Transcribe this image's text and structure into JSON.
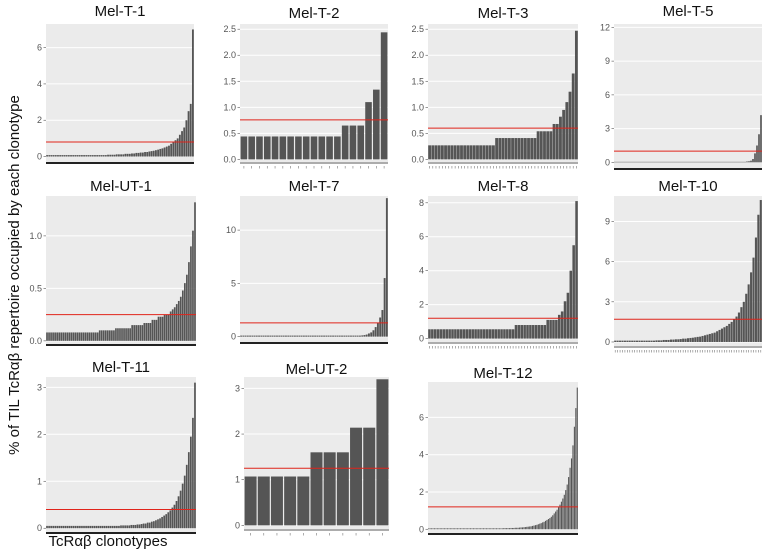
{
  "figure": {
    "ylabel": "% of TIL TcRαβ repertoire occupied by each clonotype",
    "xlabel": "TcRαβ clonotypes"
  },
  "colors": {
    "panel_bg": "#ebebeb",
    "bar": "#555555",
    "mean_line": "#e0241b",
    "axis": "#222222"
  },
  "chart_data": [
    {
      "type": "bar",
      "title": "Mel-T-1",
      "ylim": [
        -0.3,
        7.3
      ],
      "yticks": [
        0,
        2,
        4,
        6
      ],
      "mean": 0.8,
      "ytick_labels": [
        "0",
        "2",
        "4",
        "6"
      ],
      "values": [
        0.08,
        0.08,
        0.08,
        0.08,
        0.08,
        0.08,
        0.08,
        0.08,
        0.08,
        0.08,
        0.08,
        0.08,
        0.08,
        0.08,
        0.08,
        0.08,
        0.08,
        0.08,
        0.08,
        0.08,
        0.08,
        0.08,
        0.08,
        0.08,
        0.08,
        0.08,
        0.08,
        0.08,
        0.1,
        0.1,
        0.1,
        0.1,
        0.12,
        0.12,
        0.12,
        0.12,
        0.15,
        0.15,
        0.15,
        0.17,
        0.17,
        0.2,
        0.2,
        0.22,
        0.22,
        0.25,
        0.25,
        0.28,
        0.3,
        0.32,
        0.35,
        0.38,
        0.42,
        0.45,
        0.5,
        0.55,
        0.6,
        0.7,
        0.8,
        0.9,
        1.0,
        1.2,
        1.4,
        1.6,
        2.0,
        2.5,
        2.9,
        7.0
      ]
    },
    {
      "type": "bar",
      "title": "Mel-T-2",
      "ylim": [
        -0.05,
        2.6
      ],
      "yticks": [
        0.0,
        0.5,
        1.0,
        1.5,
        2.0,
        2.5
      ],
      "mean": 0.76,
      "ytick_labels": [
        "0.0",
        "0.5",
        "1.0",
        "1.5",
        "2.0",
        "2.5"
      ],
      "values": [
        0.44,
        0.44,
        0.44,
        0.44,
        0.44,
        0.44,
        0.44,
        0.44,
        0.44,
        0.44,
        0.44,
        0.44,
        0.44,
        0.65,
        0.65,
        0.65,
        1.1,
        1.34,
        2.44
      ]
    },
    {
      "type": "bar",
      "title": "Mel-T-3",
      "ylim": [
        -0.05,
        2.6
      ],
      "yticks": [
        0.0,
        0.5,
        1.0,
        1.5,
        2.0,
        2.5
      ],
      "mean": 0.6,
      "ytick_labels": [
        "0.0",
        "0.5",
        "1.0",
        "1.5",
        "2.0",
        "2.5"
      ],
      "values": [
        0.27,
        0.27,
        0.27,
        0.27,
        0.27,
        0.27,
        0.27,
        0.27,
        0.27,
        0.27,
        0.27,
        0.27,
        0.27,
        0.27,
        0.27,
        0.27,
        0.27,
        0.27,
        0.27,
        0.27,
        0.27,
        0.41,
        0.41,
        0.41,
        0.41,
        0.41,
        0.41,
        0.41,
        0.41,
        0.41,
        0.41,
        0.41,
        0.41,
        0.41,
        0.54,
        0.54,
        0.54,
        0.54,
        0.54,
        0.68,
        0.68,
        0.82,
        0.95,
        1.1,
        1.3,
        1.65,
        2.47
      ]
    },
    {
      "type": "bar",
      "title": "Mel-T-5",
      "ylim": [
        -0.5,
        12.3
      ],
      "yticks": [
        0,
        3,
        6,
        9,
        12
      ],
      "mean": 1.0,
      "ytick_labels": [
        "0",
        "3",
        "6",
        "9",
        "12"
      ],
      "values": [
        0.05,
        0.05,
        0.05,
        0.05,
        0.05,
        0.05,
        0.05,
        0.05,
        0.05,
        0.05,
        0.05,
        0.05,
        0.05,
        0.05,
        0.05,
        0.05,
        0.05,
        0.05,
        0.05,
        0.05,
        0.05,
        0.05,
        0.05,
        0.05,
        0.05,
        0.05,
        0.05,
        0.05,
        0.05,
        0.05,
        0.05,
        0.05,
        0.05,
        0.05,
        0.05,
        0.05,
        0.05,
        0.05,
        0.05,
        0.05,
        0.05,
        0.05,
        0.05,
        0.05,
        0.05,
        0.05,
        0.05,
        0.05,
        0.05,
        0.05,
        0.05,
        0.05,
        0.05,
        0.05,
        0.05,
        0.05,
        0.05,
        0.05,
        0.05,
        0.05,
        0.05,
        0.05,
        0.05,
        0.05,
        0.05,
        0.05,
        0.08,
        0.1,
        0.15,
        0.3,
        0.8,
        1.5,
        2.5,
        4.2
      ]
    },
    {
      "type": "bar",
      "title": "Mel-UT-1",
      "ylim": [
        -0.03,
        1.38
      ],
      "yticks": [
        0.0,
        0.5,
        1.0
      ],
      "mean": 0.25,
      "ytick_labels": [
        "0.0",
        "0.5",
        "1.0"
      ],
      "values": [
        0.08,
        0.08,
        0.08,
        0.08,
        0.08,
        0.08,
        0.08,
        0.08,
        0.08,
        0.08,
        0.08,
        0.08,
        0.08,
        0.08,
        0.08,
        0.08,
        0.08,
        0.08,
        0.08,
        0.08,
        0.08,
        0.08,
        0.08,
        0.08,
        0.08,
        0.08,
        0.1,
        0.1,
        0.1,
        0.1,
        0.1,
        0.1,
        0.1,
        0.1,
        0.12,
        0.12,
        0.12,
        0.12,
        0.12,
        0.12,
        0.12,
        0.12,
        0.15,
        0.15,
        0.15,
        0.15,
        0.15,
        0.15,
        0.17,
        0.17,
        0.17,
        0.17,
        0.2,
        0.2,
        0.2,
        0.23,
        0.23,
        0.23,
        0.25,
        0.25,
        0.25,
        0.28,
        0.3,
        0.32,
        0.35,
        0.38,
        0.42,
        0.48,
        0.55,
        0.63,
        0.75,
        0.9,
        1.05,
        1.32
      ]
    },
    {
      "type": "bar",
      "title": "Mel-T-7",
      "ylim": [
        -0.5,
        13.2
      ],
      "yticks": [
        0,
        5,
        10
      ],
      "mean": 1.3,
      "ytick_labels": [
        "0",
        "5",
        "10"
      ],
      "values": [
        0.1,
        0.1,
        0.1,
        0.1,
        0.1,
        0.1,
        0.1,
        0.1,
        0.1,
        0.1,
        0.1,
        0.1,
        0.1,
        0.1,
        0.1,
        0.1,
        0.1,
        0.1,
        0.1,
        0.1,
        0.1,
        0.1,
        0.1,
        0.1,
        0.1,
        0.1,
        0.1,
        0.1,
        0.1,
        0.1,
        0.1,
        0.1,
        0.1,
        0.1,
        0.1,
        0.1,
        0.1,
        0.1,
        0.1,
        0.1,
        0.1,
        0.1,
        0.1,
        0.1,
        0.1,
        0.1,
        0.1,
        0.1,
        0.1,
        0.1,
        0.1,
        0.1,
        0.1,
        0.1,
        0.12,
        0.15,
        0.2,
        0.3,
        0.4,
        0.6,
        0.9,
        1.3,
        1.8,
        2.5,
        5.5,
        13.0
      ]
    },
    {
      "type": "bar",
      "title": "Mel-T-8",
      "ylim": [
        -0.2,
        8.4
      ],
      "yticks": [
        0,
        2,
        4,
        6,
        8
      ],
      "mean": 1.2,
      "ytick_labels": [
        "0",
        "2",
        "4",
        "6",
        "8"
      ],
      "values": [
        0.55,
        0.55,
        0.55,
        0.55,
        0.55,
        0.55,
        0.55,
        0.55,
        0.55,
        0.55,
        0.55,
        0.55,
        0.55,
        0.55,
        0.55,
        0.55,
        0.55,
        0.55,
        0.55,
        0.55,
        0.55,
        0.55,
        0.55,
        0.55,
        0.55,
        0.55,
        0.55,
        0.55,
        0.55,
        0.55,
        0.8,
        0.8,
        0.8,
        0.8,
        0.8,
        0.8,
        0.8,
        0.8,
        0.8,
        0.8,
        0.8,
        1.1,
        1.1,
        1.1,
        1.1,
        1.4,
        1.6,
        2.2,
        2.7,
        4.0,
        5.5,
        8.1
      ]
    },
    {
      "type": "bar",
      "title": "Mel-T-10",
      "ylim": [
        -0.3,
        10.9
      ],
      "yticks": [
        0,
        3,
        6,
        9
      ],
      "mean": 1.7,
      "ytick_labels": [
        "0",
        "3",
        "6",
        "9"
      ],
      "values": [
        0.1,
        0.1,
        0.1,
        0.1,
        0.1,
        0.1,
        0.1,
        0.1,
        0.1,
        0.1,
        0.1,
        0.1,
        0.1,
        0.1,
        0.1,
        0.1,
        0.1,
        0.12,
        0.12,
        0.12,
        0.15,
        0.15,
        0.15,
        0.18,
        0.18,
        0.2,
        0.2,
        0.22,
        0.25,
        0.25,
        0.28,
        0.3,
        0.32,
        0.35,
        0.38,
        0.4,
        0.45,
        0.5,
        0.55,
        0.6,
        0.65,
        0.7,
        0.8,
        0.9,
        1.0,
        1.1,
        1.2,
        1.35,
        1.5,
        1.7,
        1.9,
        2.2,
        2.6,
        3.0,
        3.6,
        4.3,
        5.2,
        6.3,
        7.8,
        9.5,
        10.6
      ]
    },
    {
      "type": "bar",
      "title": "Mel-T-11",
      "ylim": [
        -0.08,
        3.22
      ],
      "yticks": [
        0,
        1,
        2,
        3
      ],
      "mean": 0.4,
      "ytick_labels": [
        "0",
        "1",
        "2",
        "3"
      ],
      "values": [
        0.05,
        0.05,
        0.05,
        0.05,
        0.05,
        0.05,
        0.05,
        0.05,
        0.05,
        0.05,
        0.05,
        0.05,
        0.05,
        0.05,
        0.05,
        0.05,
        0.05,
        0.05,
        0.05,
        0.05,
        0.05,
        0.05,
        0.05,
        0.05,
        0.05,
        0.05,
        0.05,
        0.05,
        0.05,
        0.05,
        0.05,
        0.05,
        0.05,
        0.05,
        0.05,
        0.05,
        0.06,
        0.06,
        0.06,
        0.06,
        0.06,
        0.07,
        0.07,
        0.07,
        0.08,
        0.08,
        0.09,
        0.1,
        0.1,
        0.12,
        0.12,
        0.14,
        0.15,
        0.17,
        0.19,
        0.21,
        0.24,
        0.27,
        0.3,
        0.34,
        0.38,
        0.44,
        0.5,
        0.58,
        0.68,
        0.8,
        0.95,
        1.12,
        1.35,
        1.62,
        1.95,
        2.35,
        3.1
      ]
    },
    {
      "type": "bar",
      "title": "Mel-UT-2",
      "ylim": [
        -0.08,
        3.25
      ],
      "yticks": [
        0,
        1,
        2,
        3
      ],
      "mean": 1.25,
      "ytick_labels": [
        "0",
        "1",
        "2",
        "3"
      ],
      "values": [
        1.07,
        1.07,
        1.07,
        1.07,
        1.07,
        1.6,
        1.6,
        1.6,
        2.14,
        2.14,
        3.2
      ]
    },
    {
      "type": "bar",
      "title": "Mel-T-12",
      "ylim": [
        -0.2,
        7.9
      ],
      "yticks": [
        0,
        2,
        4,
        6
      ],
      "mean": 1.2,
      "ytick_labels": [
        "0",
        "2",
        "4",
        "6"
      ],
      "values": [
        0.05,
        0.05,
        0.05,
        0.05,
        0.05,
        0.05,
        0.05,
        0.05,
        0.05,
        0.05,
        0.05,
        0.05,
        0.05,
        0.05,
        0.05,
        0.05,
        0.05,
        0.05,
        0.05,
        0.05,
        0.05,
        0.05,
        0.05,
        0.05,
        0.05,
        0.05,
        0.05,
        0.05,
        0.05,
        0.05,
        0.05,
        0.05,
        0.05,
        0.05,
        0.05,
        0.05,
        0.05,
        0.05,
        0.05,
        0.05,
        0.05,
        0.05,
        0.05,
        0.05,
        0.05,
        0.05,
        0.05,
        0.05,
        0.05,
        0.05,
        0.05,
        0.05,
        0.06,
        0.06,
        0.06,
        0.06,
        0.06,
        0.07,
        0.07,
        0.07,
        0.08,
        0.08,
        0.08,
        0.09,
        0.1,
        0.1,
        0.11,
        0.12,
        0.13,
        0.14,
        0.15,
        0.16,
        0.18,
        0.2,
        0.22,
        0.24,
        0.27,
        0.3,
        0.33,
        0.37,
        0.4,
        0.45,
        0.5,
        0.55,
        0.6,
        0.67,
        0.75,
        0.85,
        0.95,
        1.05,
        1.18,
        1.32,
        1.48,
        1.65,
        1.85,
        2.1,
        2.4,
        2.8,
        3.3,
        3.8,
        4.5,
        5.5,
        6.5,
        7.6
      ]
    }
  ]
}
